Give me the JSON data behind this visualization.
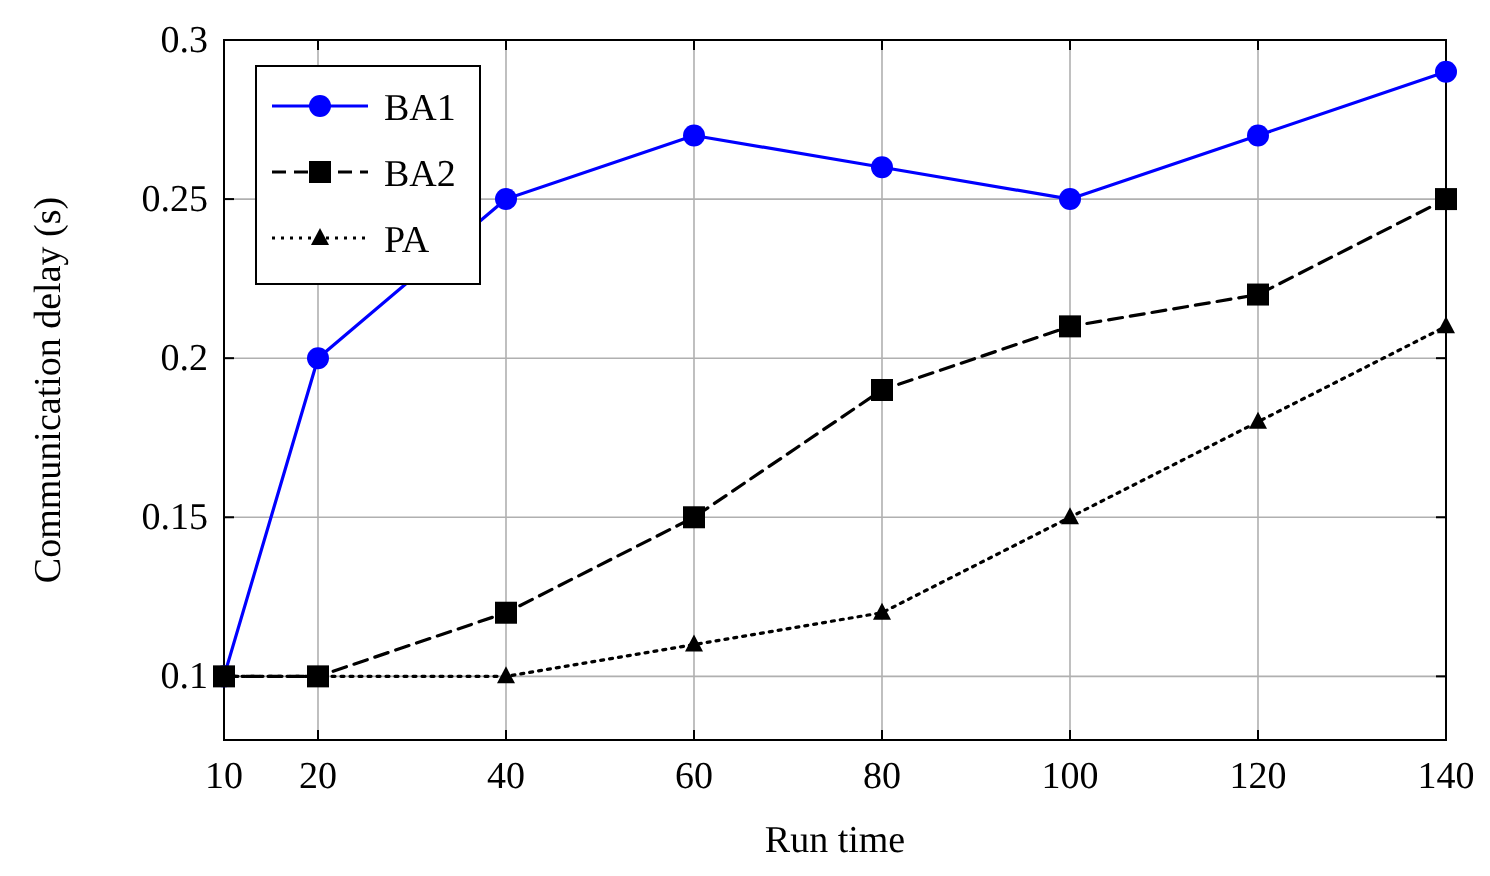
{
  "chart_data": {
    "type": "line",
    "xlabel": "Run time",
    "ylabel": "Communication delay (s)",
    "x": [
      10,
      20,
      40,
      60,
      80,
      100,
      120,
      140
    ],
    "series": [
      {
        "name": "BA1",
        "color": "#0000ff",
        "marker": "circle",
        "line_style": "solid",
        "values": [
          0.1,
          0.2,
          0.25,
          0.27,
          0.26,
          0.25,
          0.27,
          0.29
        ]
      },
      {
        "name": "BA2",
        "color": "#000000",
        "marker": "square",
        "line_style": "dashed",
        "values": [
          0.1,
          0.1,
          0.12,
          0.15,
          0.19,
          0.21,
          0.22,
          0.25
        ]
      },
      {
        "name": "PA",
        "color": "#000000",
        "marker": "triangle",
        "line_style": "dotted",
        "values": [
          0.1,
          0.1,
          0.1,
          0.11,
          0.12,
          0.15,
          0.18,
          0.21
        ]
      }
    ],
    "xlim": [
      10,
      140
    ],
    "xticks": [
      10,
      20,
      40,
      60,
      80,
      100,
      120,
      140
    ],
    "ylim": [
      0.08,
      0.3
    ],
    "yticks": [
      0.1,
      0.15,
      0.2,
      0.25,
      0.3
    ],
    "grid": true,
    "legend": "top left"
  }
}
